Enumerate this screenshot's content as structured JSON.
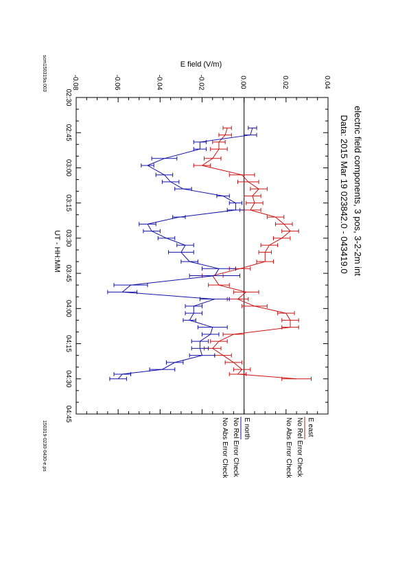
{
  "page": {
    "file_id": "scm150319a.003",
    "plot_file": "150319-0230-0430-e.ps"
  },
  "chart_data": {
    "type": "line",
    "title": "electric field components, 3 pos, 3-2-2m int",
    "subtitle": "Data: 2015 Mar 19     023842.0 - 043419.0",
    "xlabel": "UT - HH:MM",
    "ylabel": "E field (V/m)",
    "xlim": [
      "02:30",
      "04:45"
    ],
    "ylim": [
      -0.08,
      0.04
    ],
    "x_ticks": [
      "02:30",
      "02:45",
      "03:00",
      "03:15",
      "03:30",
      "03:45",
      "04:00",
      "04:15",
      "04:30",
      "04:45"
    ],
    "y_ticks": [
      "-0.08",
      "-0.06",
      "-0.04",
      "-0.02",
      "0.00",
      "0.02",
      "0.04"
    ],
    "zero_line": true,
    "grid": false,
    "legend_position": "right",
    "legend_notes": [
      "No Rel Error Check",
      "No Abs Error Check"
    ],
    "series": [
      {
        "name": "E east",
        "color": "#cc1111",
        "points": [
          [
            "02:43",
            -0.008,
            0.002
          ],
          [
            "02:46",
            -0.009,
            0.003
          ],
          [
            "02:49",
            -0.012,
            0.003
          ],
          [
            "02:52",
            -0.012,
            0.004
          ],
          [
            "02:56",
            -0.015,
            0.004
          ],
          [
            "02:59",
            -0.02,
            0.004
          ],
          [
            "03:03",
            -0.001,
            0.006
          ],
          [
            "03:06",
            0.002,
            0.005
          ],
          [
            "03:09",
            0.007,
            0.004
          ],
          [
            "03:12",
            0.004,
            0.004
          ],
          [
            "03:15",
            0.005,
            0.004
          ],
          [
            "03:18",
            0.003,
            0.005
          ],
          [
            "03:21",
            0.015,
            0.004
          ],
          [
            "03:24",
            0.019,
            0.004
          ],
          [
            "03:27",
            0.022,
            0.004
          ],
          [
            "03:30",
            0.018,
            0.004
          ],
          [
            "03:33",
            0.012,
            0.004
          ],
          [
            "03:36",
            0.01,
            0.003
          ],
          [
            "03:40",
            0.01,
            0.004
          ],
          [
            "03:43",
            -0.002,
            0.005
          ],
          [
            "03:46",
            -0.015,
            0.005
          ],
          [
            "03:50",
            -0.012,
            0.005
          ],
          [
            "03:53",
            0.001,
            0.006
          ],
          [
            "03:56",
            -0.003,
            0.005
          ],
          [
            "03:59",
            0.005,
            0.006
          ],
          [
            "04:02",
            0.02,
            0.004
          ],
          [
            "04:05",
            0.022,
            0.004
          ],
          [
            "04:08",
            0.022,
            0.004
          ],
          [
            "04:11",
            -0.005,
            0.005
          ],
          [
            "04:14",
            -0.012,
            0.004
          ],
          [
            "04:17",
            -0.015,
            0.004
          ],
          [
            "04:20",
            -0.01,
            0.004
          ],
          [
            "04:23",
            -0.005,
            0.004
          ],
          [
            "04:26",
            -0.001,
            0.004
          ],
          [
            "04:28",
            -0.003,
            0.004
          ],
          [
            "04:30",
            0.025,
            0.007
          ]
        ]
      },
      {
        "name": "E north",
        "color": "#1111aa",
        "points": [
          [
            "02:43",
            0.004,
            0.002
          ],
          [
            "02:46",
            0.003,
            0.003
          ],
          [
            "02:49",
            -0.021,
            0.003
          ],
          [
            "02:52",
            -0.021,
            0.003
          ],
          [
            "02:56",
            -0.038,
            0.006
          ],
          [
            "02:59",
            -0.046,
            0.003
          ],
          [
            "03:03",
            -0.038,
            0.004
          ],
          [
            "03:06",
            -0.035,
            0.004
          ],
          [
            "03:09",
            -0.029,
            0.004
          ],
          [
            "03:12",
            -0.01,
            0.003
          ],
          [
            "03:15",
            -0.004,
            0.003
          ],
          [
            "03:18",
            -0.004,
            0.004
          ],
          [
            "03:21",
            -0.031,
            0.003
          ],
          [
            "03:24",
            -0.046,
            0.004
          ],
          [
            "03:27",
            -0.044,
            0.004
          ],
          [
            "03:30",
            -0.037,
            0.004
          ],
          [
            "03:33",
            -0.028,
            0.004
          ],
          [
            "03:36",
            -0.03,
            0.006
          ],
          [
            "03:40",
            -0.026,
            0.004
          ],
          [
            "03:43",
            -0.012,
            0.008
          ],
          [
            "03:46",
            -0.014,
            0.012
          ],
          [
            "03:50",
            -0.054,
            0.008
          ],
          [
            "03:53",
            -0.058,
            0.007
          ],
          [
            "03:56",
            -0.014,
            0.007
          ],
          [
            "03:59",
            -0.024,
            0.004
          ],
          [
            "04:02",
            -0.024,
            0.004
          ],
          [
            "04:05",
            -0.026,
            0.003
          ],
          [
            "04:08",
            -0.015,
            0.007
          ],
          [
            "04:11",
            -0.016,
            0.004
          ],
          [
            "04:14",
            -0.021,
            0.004
          ],
          [
            "04:17",
            -0.021,
            0.004
          ],
          [
            "04:20",
            -0.02,
            0.006
          ],
          [
            "04:23",
            -0.033,
            0.004
          ],
          [
            "04:26",
            -0.039,
            0.006
          ],
          [
            "04:28",
            -0.058,
            0.004
          ],
          [
            "04:30",
            -0.06,
            0.004
          ]
        ]
      }
    ]
  }
}
